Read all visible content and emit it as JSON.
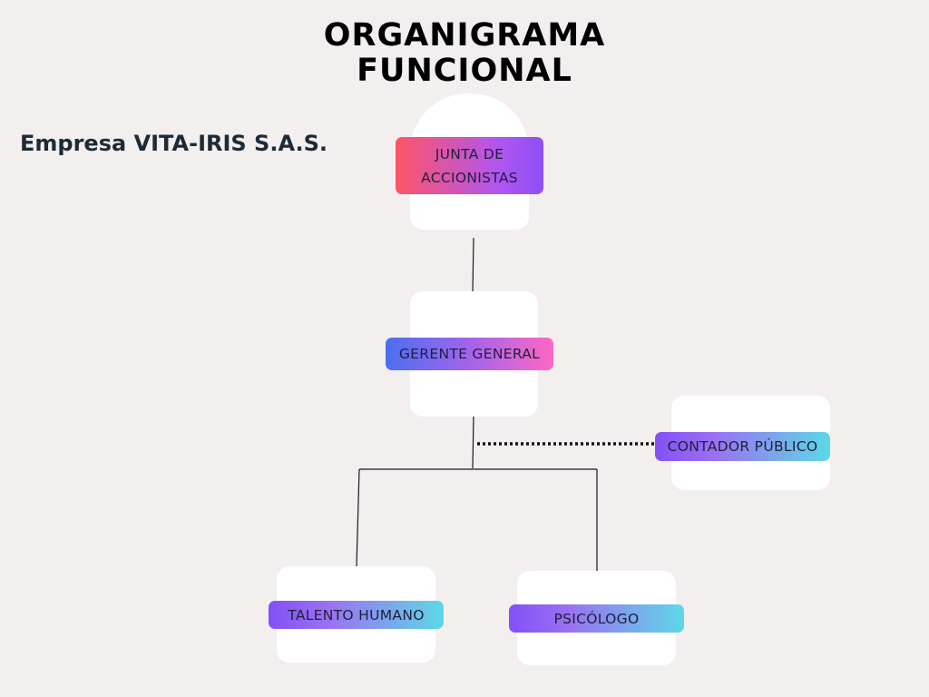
{
  "header": {
    "title_line1": "ORGANIGRAMA",
    "title_line2": "FUNCIONAL",
    "company": "Empresa VITA-IRIS S.A.S."
  },
  "nodes": {
    "junta": {
      "line1": "JUNTA DE",
      "line2": "ACCIONISTAS"
    },
    "gerente": {
      "label": "GERENTE GENERAL"
    },
    "contador": {
      "label": "CONTADOR PÚBLICO"
    },
    "talento": {
      "label": "TALENTO HUMANO"
    },
    "psicologo": {
      "label": "PSICÓLOGO"
    }
  },
  "colors": {
    "background": "#f3efef",
    "card": "#ffffff",
    "line": "#1a1a1a",
    "gradient_warm": [
      "#ff5566",
      "#8e4ff5"
    ],
    "gradient_pink": [
      "#4d6ff0",
      "#ff67c4"
    ],
    "gradient_cyan": [
      "#8450f7",
      "#5dd8e6"
    ]
  }
}
